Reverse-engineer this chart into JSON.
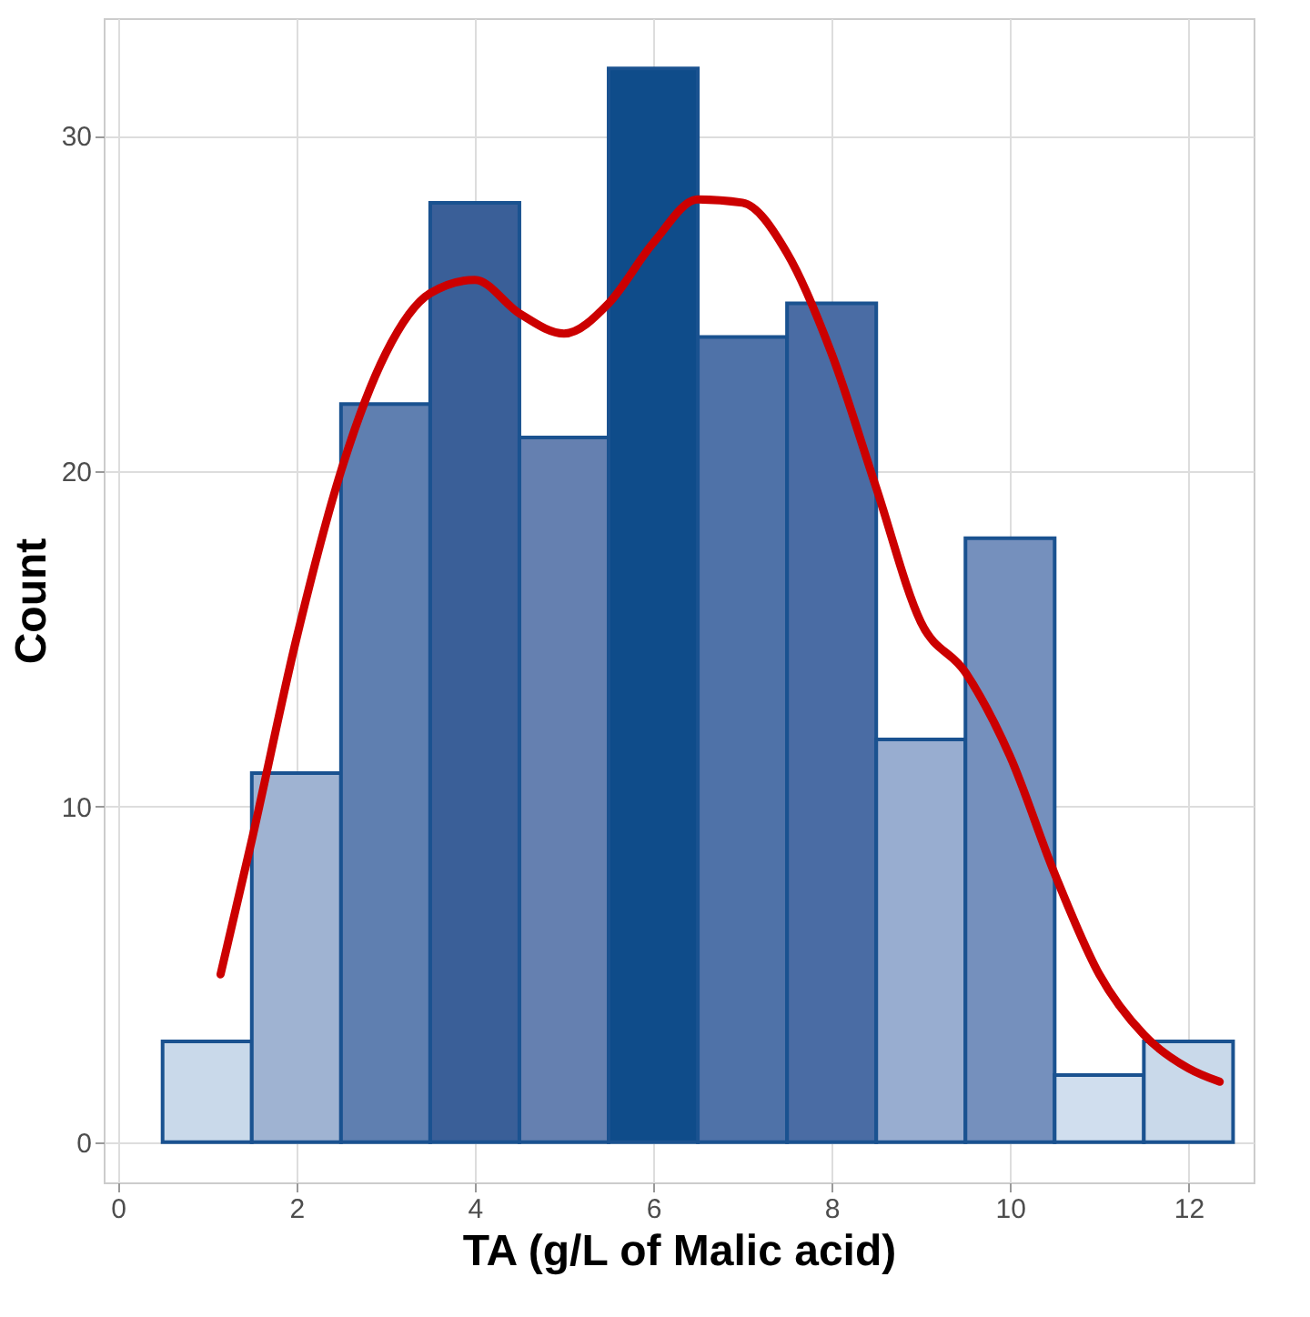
{
  "chart_data": {
    "type": "histogram",
    "xlabel": "TA (g/L of Malic acid)",
    "ylabel": "Count",
    "bins": [
      0.5,
      1.5,
      2.5,
      3.5,
      4.5,
      5.5,
      6.5,
      7.5,
      8.5,
      9.5,
      10.5,
      11.5,
      12.5
    ],
    "values": [
      3,
      11,
      22,
      28,
      21,
      32,
      24,
      25,
      12,
      18,
      2,
      3
    ],
    "colors": [
      "#c9d9ea",
      "#9fb3d2",
      "#5f7fb0",
      "#3a5f98",
      "#6580b0",
      "#0f4c8a",
      "#4f72a8",
      "#4a6ca4",
      "#98add0",
      "#7590bd",
      "#d0deee",
      "#c9d9ea"
    ],
    "series": [
      {
        "type": "line",
        "color": "#cc0000",
        "x": [
          1.15,
          1.5,
          2,
          2.5,
          3,
          3.5,
          4,
          4.5,
          5,
          5.5,
          6,
          6.5,
          7,
          7.5,
          8,
          8.5,
          9,
          9.5,
          10,
          10.5,
          11,
          11.5,
          12,
          12.35
        ],
        "values": [
          5,
          9,
          15,
          20,
          23.5,
          25.3,
          25.7,
          24.7,
          24.1,
          25,
          26.8,
          28.1,
          28,
          26.5,
          23.5,
          19.5,
          15.5,
          14,
          11.5,
          8,
          5,
          3.2,
          2.2,
          1.8
        ]
      }
    ],
    "xlim": [
      -0.16,
      12.73
    ],
    "ylim": [
      -1.2,
      33.5
    ],
    "xticks": [
      0,
      2,
      4,
      6,
      8,
      10,
      12
    ],
    "yticks": [
      0,
      10,
      20,
      30
    ],
    "grid": true
  }
}
